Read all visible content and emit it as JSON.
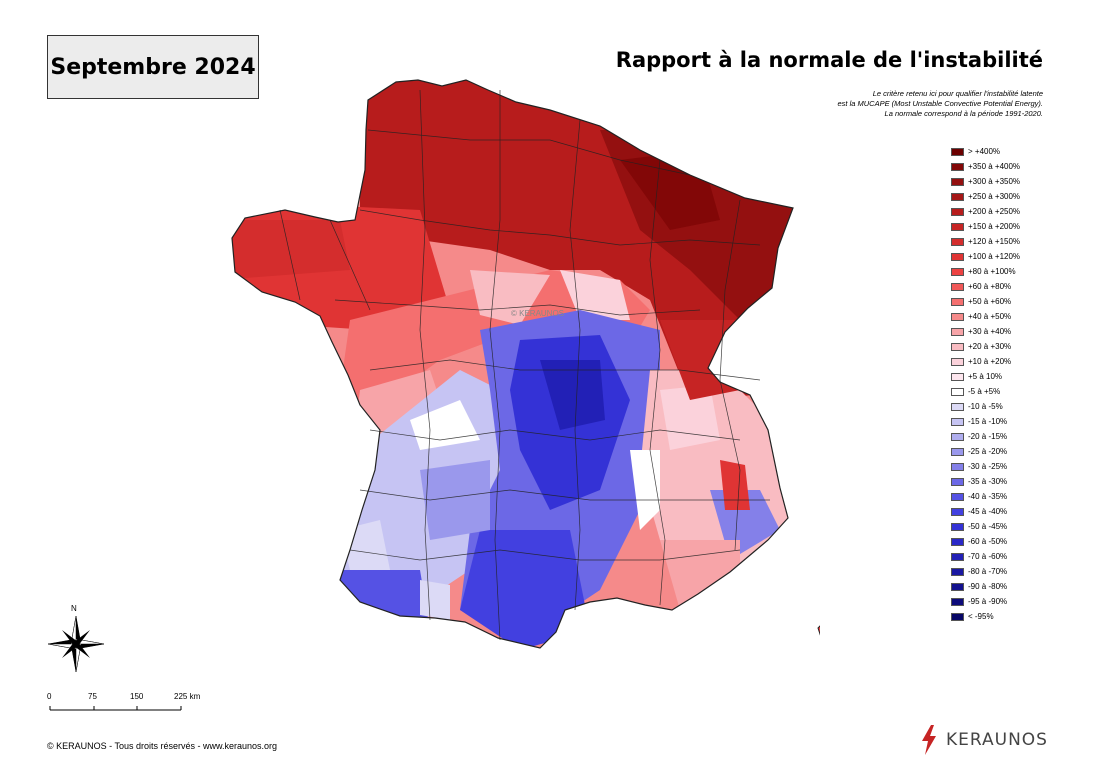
{
  "header": {
    "period": "Septembre 2024",
    "title": "Rapport à la normale de l'instabilité",
    "note": [
      "Le critère retenu ici pour qualifier l'instabilité latente",
      "est la MUCAPE (Most Unstable Convective Potential Energy).",
      "La normale correspond à la période 1991-2020."
    ]
  },
  "legend": {
    "items": [
      {
        "label": "> +400%",
        "color": "#6b0000"
      },
      {
        "label": "+350 à +400%",
        "color": "#820707"
      },
      {
        "label": "+300 à +350%",
        "color": "#941010"
      },
      {
        "label": "+250 à +300%",
        "color": "#a51616"
      },
      {
        "label": "+200 à +250%",
        "color": "#b71c1c"
      },
      {
        "label": "+150 à +200%",
        "color": "#c62424"
      },
      {
        "label": "+120 à +150%",
        "color": "#d42d2d"
      },
      {
        "label": "+100 à +120%",
        "color": "#e03434"
      },
      {
        "label": "+80 à +100%",
        "color": "#ec4242"
      },
      {
        "label": "+60 à +80%",
        "color": "#f05858"
      },
      {
        "label": "+50 à +60%",
        "color": "#f46f6f"
      },
      {
        "label": "+40 à +50%",
        "color": "#f58a8a"
      },
      {
        "label": "+30 à +40%",
        "color": "#f7a4a8"
      },
      {
        "label": "+20 à +30%",
        "color": "#f9bcc2"
      },
      {
        "label": "+10 à +20%",
        "color": "#fbd2db"
      },
      {
        "label": "+5 à 10%",
        "color": "#fde6ee"
      },
      {
        "label": "-5 à +5%",
        "color": "#ffffff"
      },
      {
        "label": "-10 à -5%",
        "color": "#dcdaf6"
      },
      {
        "label": "-15 à -10%",
        "color": "#c6c4f3"
      },
      {
        "label": "-20 à -15%",
        "color": "#b0aeef"
      },
      {
        "label": "-25 à -20%",
        "color": "#9a98ec"
      },
      {
        "label": "-30 à -25%",
        "color": "#8480e9"
      },
      {
        "label": "-35 à -30%",
        "color": "#6c68e6"
      },
      {
        "label": "-40 à -35%",
        "color": "#5552e4"
      },
      {
        "label": "-45 à -40%",
        "color": "#4240e0"
      },
      {
        "label": "-50 à -45%",
        "color": "#3432d6"
      },
      {
        "label": "-60 à -50%",
        "color": "#2a28c8"
      },
      {
        "label": "-70 à -60%",
        "color": "#2220b6"
      },
      {
        "label": "-80 à -70%",
        "color": "#1a18a2"
      },
      {
        "label": "-90 à -80%",
        "color": "#13118e"
      },
      {
        "label": "-95 à -90%",
        "color": "#0d0b7a"
      },
      {
        "label": "< -95%",
        "color": "#070666"
      }
    ]
  },
  "map": {
    "watermark": "© KERAUNOS",
    "north_label": "N"
  },
  "scale": {
    "ticks": [
      "0",
      "75",
      "150",
      "225 km"
    ]
  },
  "footer": {
    "copyright": "© KERAUNOS - Tous droits réservés - www.keraunos.org",
    "brand": "KERAUNOS",
    "brand_color": "#c62424"
  }
}
